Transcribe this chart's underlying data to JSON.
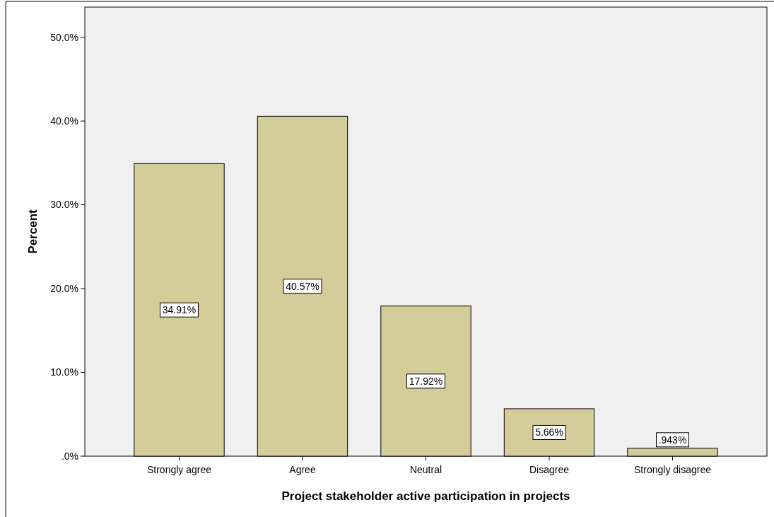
{
  "chart_data": {
    "type": "bar",
    "xlabel": "Project stakeholder active participation in projects",
    "ylabel": "Percent",
    "categories": [
      "Strongly agree",
      "Agree",
      "Neutral",
      "Disagree",
      "Strongly disagree"
    ],
    "values": [
      34.91,
      40.57,
      17.92,
      5.66,
      0.943
    ],
    "value_labels": [
      "34.91%",
      "40.57%",
      "17.92%",
      "5.66%",
      ".943%"
    ],
    "color": "#d3cd9a",
    "ylim": [
      0,
      53.6
    ],
    "yticks": [
      {
        "value": 0,
        "label": ".0%"
      },
      {
        "value": 10,
        "label": "10.0%"
      },
      {
        "value": 20,
        "label": "20.0%"
      },
      {
        "value": 30,
        "label": "30.0%"
      },
      {
        "value": 40,
        "label": "40.0%"
      },
      {
        "value": 50,
        "label": "50.0%"
      }
    ],
    "grid": false
  }
}
